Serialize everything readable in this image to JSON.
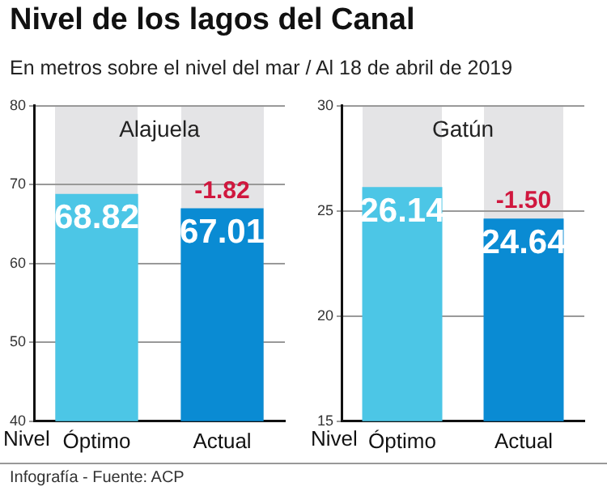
{
  "chart_data": [
    {
      "type": "bar",
      "title": "Nivel de los lagos del Canal",
      "subtitle": "En metros sobre el nivel del mar / Al 18 de abril de 2019",
      "xlabel": "Nivel",
      "categories": [
        "Óptimo",
        "Actual"
      ],
      "values": [
        68.82,
        67.01
      ],
      "colors": [
        "#4cc6e6",
        "#0a8bd3"
      ],
      "ylim": [
        40,
        80
      ],
      "yticks": [
        40,
        50,
        60,
        70,
        80
      ],
      "grid": "y",
      "data_labels": true,
      "annotations": [
        "Alajuela",
        {
          "text": "-1.82",
          "x": "Actual",
          "y": 67.01
        },
        "Infografía - Fuente: ACP"
      ]
    },
    {
      "type": "bar",
      "xlabel": "Nivel",
      "categories": [
        "Óptimo",
        "Actual"
      ],
      "values": [
        26.14,
        24.64
      ],
      "colors": [
        "#4cc6e6",
        "#0a8bd3"
      ],
      "ylim": [
        15,
        30
      ],
      "yticks": [
        15,
        20,
        25,
        30
      ],
      "grid": "y",
      "data_labels": true,
      "annotations": [
        "Gatún",
        {
          "text": "-1.50",
          "x": "Actual",
          "y": 24.64
        }
      ]
    }
  ]
}
